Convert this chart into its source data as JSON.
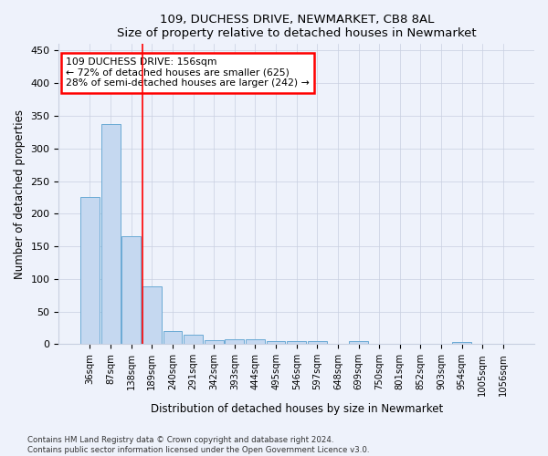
{
  "title1": "109, DUCHESS DRIVE, NEWMARKET, CB8 8AL",
  "title2": "Size of property relative to detached houses in Newmarket",
  "xlabel": "Distribution of detached houses by size in Newmarket",
  "ylabel": "Number of detached properties",
  "footer1": "Contains HM Land Registry data © Crown copyright and database right 2024.",
  "footer2": "Contains public sector information licensed under the Open Government Licence v3.0.",
  "bar_labels": [
    "36sqm",
    "87sqm",
    "138sqm",
    "189sqm",
    "240sqm",
    "291sqm",
    "342sqm",
    "393sqm",
    "444sqm",
    "495sqm",
    "546sqm",
    "597sqm",
    "648sqm",
    "699sqm",
    "750sqm",
    "801sqm",
    "852sqm",
    "903sqm",
    "954sqm",
    "1005sqm",
    "1056sqm"
  ],
  "bar_values": [
    225,
    337,
    165,
    88,
    20,
    15,
    6,
    7,
    7,
    4,
    5,
    4,
    0,
    4,
    0,
    0,
    0,
    0,
    3,
    0,
    0
  ],
  "bar_color": "#c5d8f0",
  "bar_edge_color": "#6aaad4",
  "red_line_x": 2.55,
  "annotation_line1": "109 DUCHESS DRIVE: 156sqm",
  "annotation_line2": "← 72% of detached houses are smaller (625)",
  "annotation_line3": "28% of semi-detached houses are larger (242) →",
  "annotation_box_color": "white",
  "annotation_box_edge": "red",
  "bg_color": "#eef2fb",
  "grid_color": "#c8cfe0",
  "ylim": [
    0,
    460
  ],
  "yticks": [
    0,
    50,
    100,
    150,
    200,
    250,
    300,
    350,
    400,
    450
  ]
}
